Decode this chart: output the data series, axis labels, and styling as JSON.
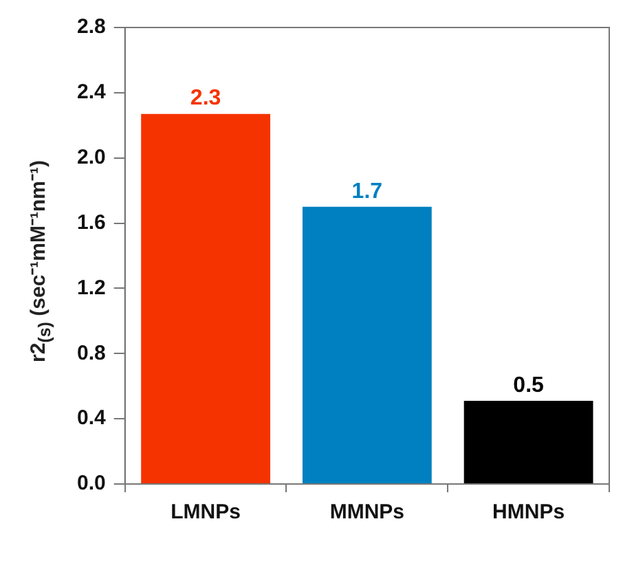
{
  "chart_data": {
    "type": "bar",
    "ylabel": "r2$_{(s)}$ (sec⁻¹mM⁻¹nm⁻¹)",
    "categories": [
      "LMNPs",
      "MMNPs",
      "HMNPs"
    ],
    "values": [
      2.27,
      1.7,
      0.51
    ],
    "value_labels": [
      "2.3",
      "1.7",
      "0.5"
    ],
    "colors": [
      "#f53300",
      "#0080c0",
      "#000000"
    ],
    "ylim": [
      0,
      2.8
    ],
    "yticks": [
      {
        "value": 0,
        "label": "0.0"
      },
      {
        "value": 0.4,
        "label": "0.4"
      },
      {
        "value": 0.8,
        "label": "0.8"
      },
      {
        "value": 1.2,
        "label": "1.2"
      },
      {
        "value": 1.6,
        "label": "1.6"
      },
      {
        "value": 2,
        "label": "2.0"
      },
      {
        "value": 2.4,
        "label": "2.4"
      },
      {
        "value": 2.8,
        "label": "2.8"
      }
    ],
    "grid": false,
    "legend": false
  }
}
